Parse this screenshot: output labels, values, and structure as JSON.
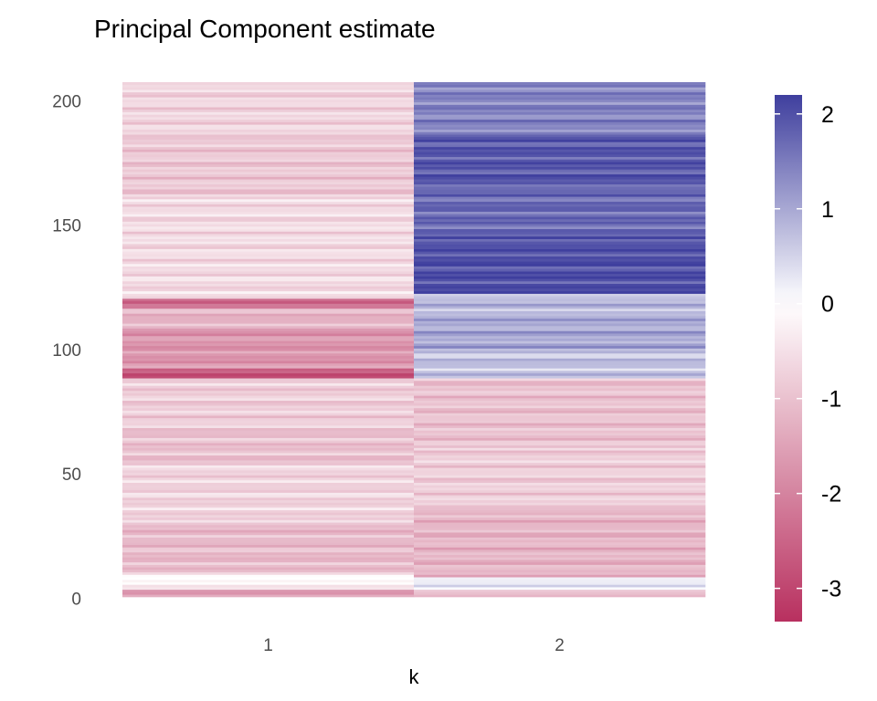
{
  "chart_data": {
    "type": "heatmap",
    "title": "Principal Component estimate",
    "xlabel": "k",
    "ylabel": "",
    "x_categories": [
      "1",
      "2"
    ],
    "y_range": [
      1,
      207
    ],
    "y_ticks": [
      0,
      50,
      100,
      150,
      200
    ],
    "legend": {
      "position": "right",
      "range": [
        -3.35,
        2.2
      ],
      "ticks": [
        2,
        1,
        0,
        -1,
        -2,
        -3
      ],
      "colors": {
        "low": "#b8305f",
        "mid": "#ffffff",
        "high": "#3f3f9e"
      }
    },
    "series": [
      {
        "name": "1",
        "segments": [
          {
            "from": 1,
            "to": 3,
            "value": -1.7
          },
          {
            "from": 4,
            "to": 10,
            "value": -0.2
          },
          {
            "from": 11,
            "to": 30,
            "value": -1.1
          },
          {
            "from": 31,
            "to": 55,
            "value": -0.7
          },
          {
            "from": 56,
            "to": 68,
            "value": -1.0
          },
          {
            "from": 69,
            "to": 88,
            "value": -0.8
          },
          {
            "from": 89,
            "to": 92,
            "value": -2.7
          },
          {
            "from": 93,
            "to": 108,
            "value": -1.7
          },
          {
            "from": 109,
            "to": 116,
            "value": -1.2
          },
          {
            "from": 117,
            "to": 120,
            "value": -2.3
          },
          {
            "from": 121,
            "to": 160,
            "value": -0.6
          },
          {
            "from": 161,
            "to": 185,
            "value": -0.9
          },
          {
            "from": 186,
            "to": 207,
            "value": -0.7
          }
        ]
      },
      {
        "name": "2",
        "segments": [
          {
            "from": 1,
            "to": 3,
            "value": -0.9
          },
          {
            "from": 4,
            "to": 8,
            "value": 0.2
          },
          {
            "from": 9,
            "to": 35,
            "value": -1.2
          },
          {
            "from": 36,
            "to": 60,
            "value": -0.8
          },
          {
            "from": 61,
            "to": 88,
            "value": -1.0
          },
          {
            "from": 89,
            "to": 100,
            "value": 0.7
          },
          {
            "from": 101,
            "to": 112,
            "value": 1.0
          },
          {
            "from": 113,
            "to": 122,
            "value": 0.8
          },
          {
            "from": 123,
            "to": 145,
            "value": 2.0
          },
          {
            "from": 146,
            "to": 165,
            "value": 1.7
          },
          {
            "from": 166,
            "to": 185,
            "value": 1.9
          },
          {
            "from": 186,
            "to": 207,
            "value": 1.4
          }
        ]
      }
    ]
  }
}
